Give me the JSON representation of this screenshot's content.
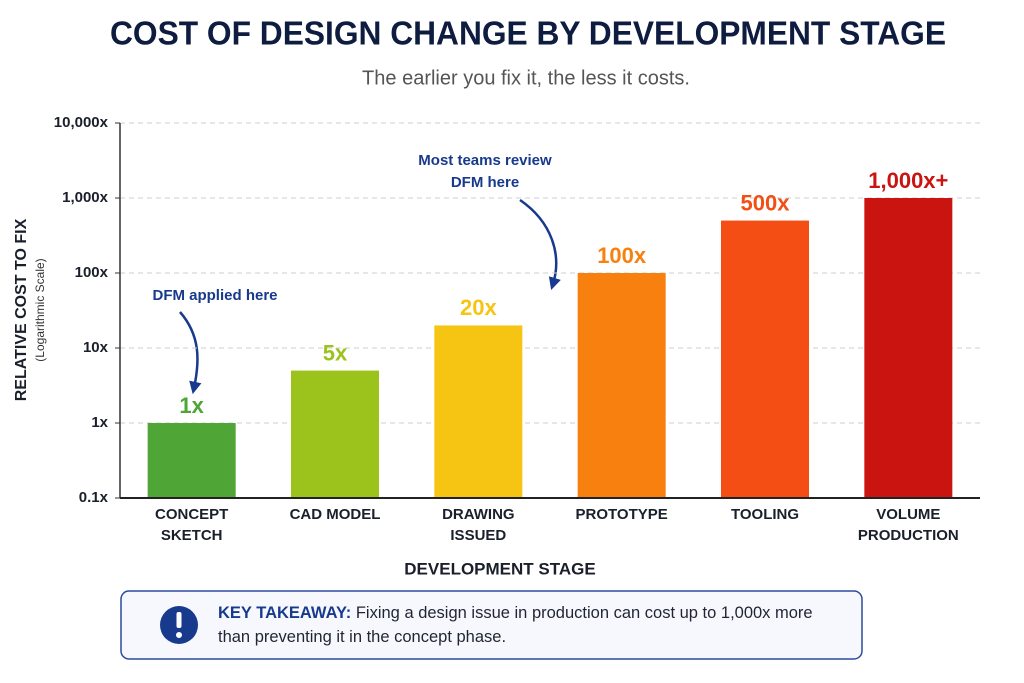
{
  "chart_data": {
    "type": "bar",
    "title": "COST OF DESIGN CHANGE BY DEVELOPMENT STAGE",
    "subtitle": "The earlier you fix it, the less it costs.",
    "y_label": "RELATIVE COST TO FIX",
    "y_sublabel": "(Logarithmic Scale)",
    "x_label": "DEVELOPMENT STAGE",
    "categories": [
      "CONCEPT SKETCH",
      "CAD MODEL",
      "DRAWING ISSUED",
      "PROTOTYPE",
      "TOOLING",
      "VOLUME PRODUCTION"
    ],
    "values": [
      1,
      5,
      20,
      100,
      500,
      1000
    ],
    "value_labels": [
      "1x",
      "5x",
      "20x",
      "100x",
      "500x",
      "1,000x+"
    ],
    "colors": [
      "#4fa535",
      "#9cc31c",
      "#f6c514",
      "#f8800f",
      "#f44e14",
      "#c9140f"
    ],
    "log_scale": true,
    "ylim": [
      0.1,
      10000
    ],
    "yticks": [
      {
        "value": 0.1,
        "label": "0.1x"
      },
      {
        "value": 1,
        "label": "1x"
      },
      {
        "value": 10,
        "label": "10x"
      },
      {
        "value": 100,
        "label": "100x"
      },
      {
        "value": 1000,
        "label": "1,000x"
      },
      {
        "value": 10000,
        "label": "10,000x"
      }
    ],
    "grid": true,
    "annotations": [
      "DFM applied here",
      "Most teams review DFM here"
    ]
  },
  "callout": {
    "label": "KEY TAKEAWAY:",
    "text": "Fixing a design issue in production can cost up to 1,000x more than preventing it in the concept phase."
  }
}
